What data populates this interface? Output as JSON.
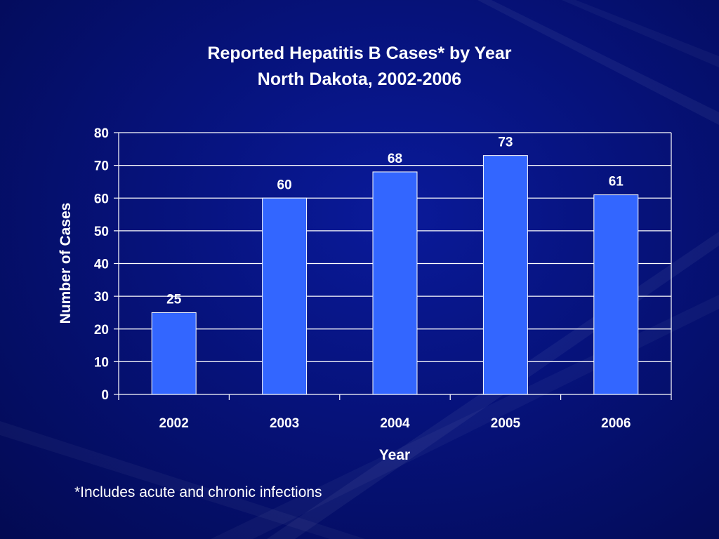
{
  "slide": {
    "footnote": "*Includes acute and chronic infections"
  },
  "chart_data": {
    "type": "bar",
    "title": "Reported Hepatitis B Cases* by Year",
    "subtitle": "North Dakota, 2002-2006",
    "xlabel": "Year",
    "ylabel": "Number of Cases",
    "categories": [
      "2002",
      "2003",
      "2004",
      "2005",
      "2006"
    ],
    "values": [
      25,
      60,
      68,
      73,
      61
    ],
    "data_labels": [
      "25",
      "60",
      "68",
      "73",
      "61"
    ],
    "y_ticks": [
      0,
      10,
      20,
      30,
      40,
      50,
      60,
      70,
      80
    ],
    "ylim": [
      0,
      80
    ],
    "grid": true,
    "legend": "none",
    "colors": {
      "bar_fill": "#3366ff",
      "bar_stroke": "#ffffff",
      "gridline": "#ffffff",
      "text": "#ffffff"
    }
  }
}
